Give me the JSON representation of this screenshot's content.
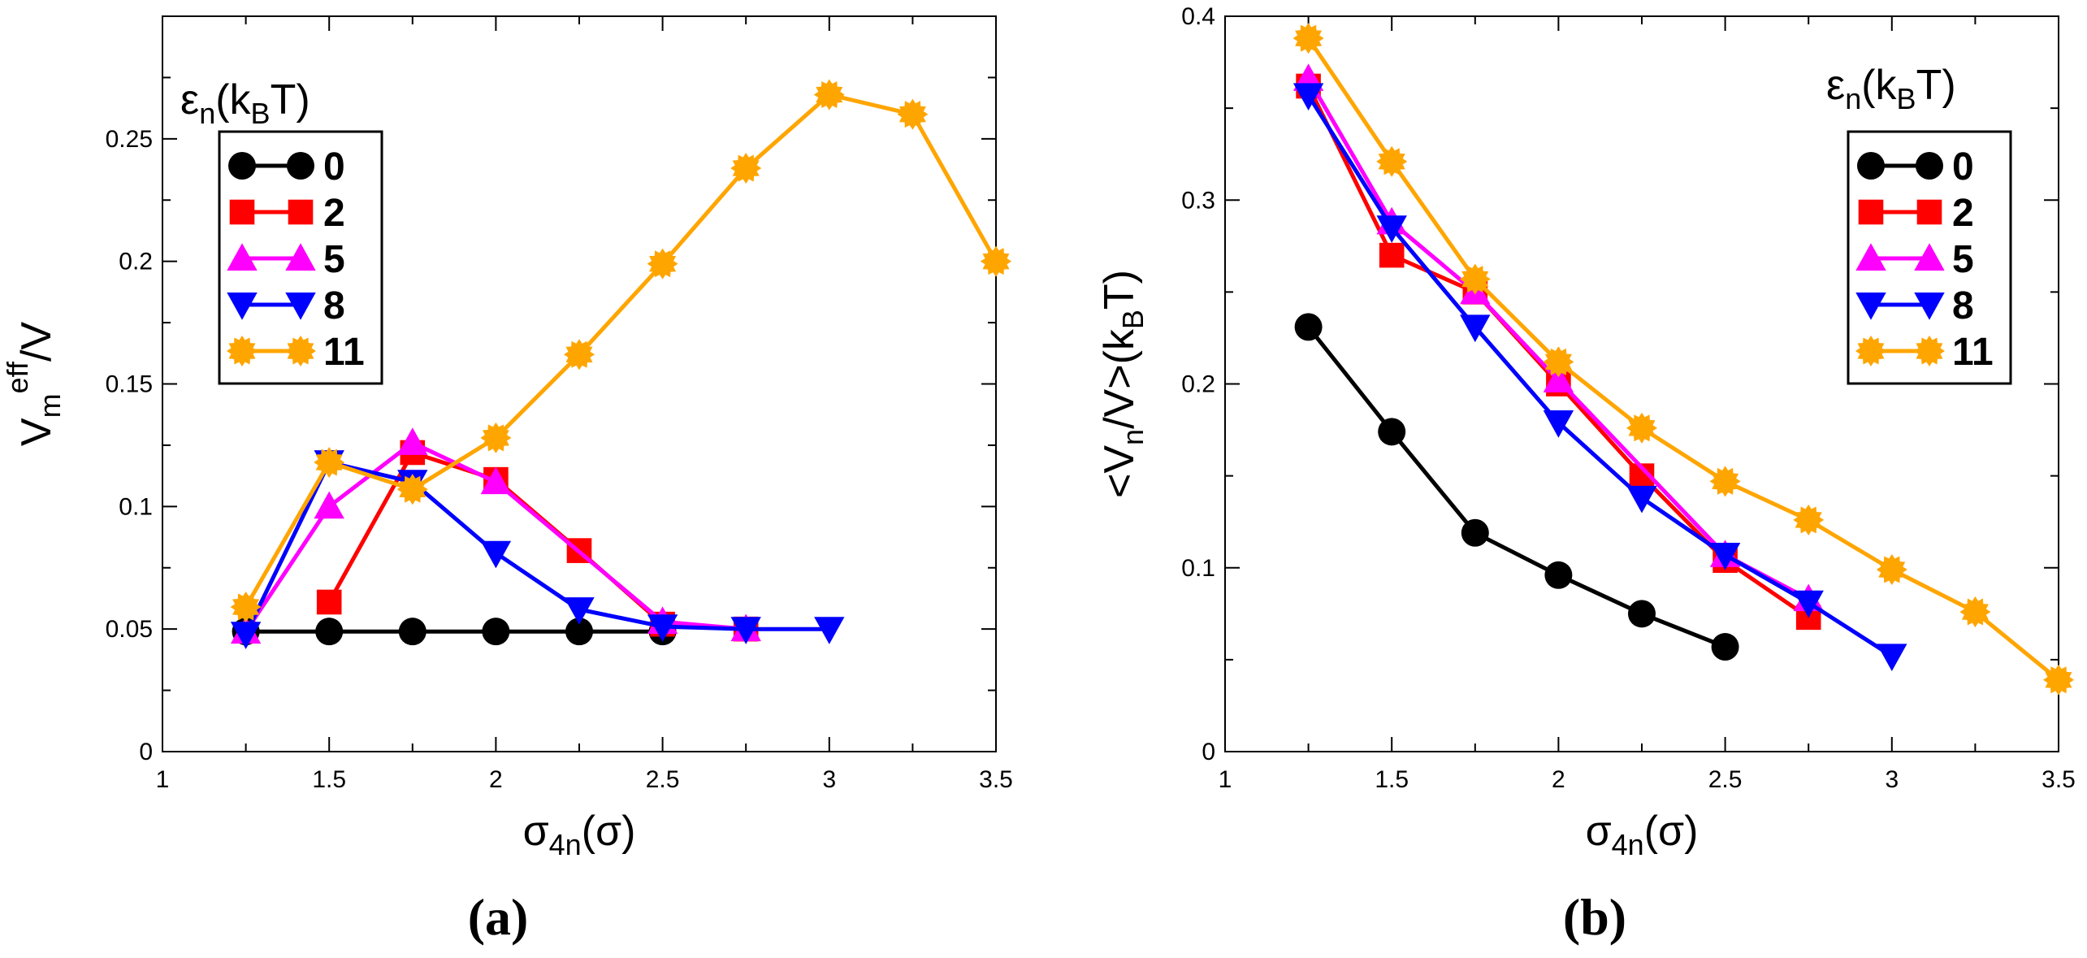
{
  "chart_data": [
    {
      "type": "line",
      "panel_label": "(a)",
      "xlabel": {
        "main": "σ",
        "sub": "4n",
        "tail": "(σ)"
      },
      "ylabel": {
        "main": "V",
        "sub": "m",
        "sup": "eff",
        "tail": "/V"
      },
      "xlim": [
        1,
        3.5
      ],
      "ylim": [
        0,
        0.3
      ],
      "xticks": [
        1,
        1.5,
        2,
        2.5,
        3,
        3.5
      ],
      "xtick_labels": [
        "1",
        "1.5",
        "2",
        "2.5",
        "3",
        "3.5"
      ],
      "yticks": [
        0,
        0.05,
        0.1,
        0.15,
        0.2,
        0.25
      ],
      "ytick_labels": [
        "0",
        "0.05",
        "0.1",
        "0.15",
        "0.2",
        "0.25"
      ],
      "legend": {
        "placement": "top-left",
        "title": {
          "main": "ε",
          "sub": "n",
          "tail": "(k",
          "sub2": "B",
          "tail2": "T)"
        }
      },
      "series": [
        {
          "name": "0",
          "color": "#000000",
          "marker": "circle",
          "x": [
            1.25,
            1.5,
            1.75,
            2.0,
            2.25,
            2.5
          ],
          "y": [
            0.049,
            0.049,
            0.049,
            0.049,
            0.049,
            0.049
          ]
        },
        {
          "name": "2",
          "color": "#ff0000",
          "marker": "square",
          "x": [
            1.5,
            1.75,
            2.0,
            2.25,
            2.5,
            2.75
          ],
          "y": [
            0.061,
            0.122,
            0.111,
            0.082,
            0.052,
            0.05
          ]
        },
        {
          "name": "5",
          "color": "#ff00ff",
          "marker": "triangle-up",
          "x": [
            1.25,
            1.5,
            1.75,
            2.0,
            2.5,
            2.75
          ],
          "y": [
            0.049,
            0.1,
            0.126,
            0.11,
            0.053,
            0.05
          ]
        },
        {
          "name": "8",
          "color": "#0000ff",
          "marker": "triangle-down",
          "x": [
            1.25,
            1.5,
            1.75,
            2.0,
            2.25,
            2.5,
            2.75,
            3.0
          ],
          "y": [
            0.048,
            0.118,
            0.11,
            0.081,
            0.058,
            0.051,
            0.05,
            0.05
          ]
        },
        {
          "name": "11",
          "color": "#ffa500",
          "marker": "star",
          "x": [
            1.25,
            1.5,
            1.75,
            2.0,
            2.25,
            2.5,
            2.75,
            3.0,
            3.25,
            3.5
          ],
          "y": [
            0.059,
            0.118,
            0.107,
            0.128,
            0.162,
            0.199,
            0.238,
            0.268,
            0.26,
            0.2
          ]
        }
      ]
    },
    {
      "type": "line",
      "panel_label": "(b)",
      "xlabel": {
        "main": "σ",
        "sub": "4n",
        "tail": "(σ)"
      },
      "ylabel": {
        "main": "<V",
        "sub": "n",
        "tail": "/V>(k",
        "sub2": "B",
        "tail2": "T)"
      },
      "xlim": [
        1,
        3.5
      ],
      "ylim": [
        0,
        0.4
      ],
      "xticks": [
        1,
        1.5,
        2,
        2.5,
        3,
        3.5
      ],
      "xtick_labels": [
        "1",
        "1.5",
        "2",
        "2.5",
        "3",
        "3.5"
      ],
      "yticks": [
        0,
        0.1,
        0.2,
        0.3,
        0.4
      ],
      "ytick_labels": [
        "0",
        "0.1",
        "0.2",
        "0.3",
        "0.4"
      ],
      "legend": {
        "placement": "top-right",
        "title": {
          "main": "ε",
          "sub": "n",
          "tail": "(k",
          "sub2": "B",
          "tail2": "T)"
        }
      },
      "series": [
        {
          "name": "0",
          "color": "#000000",
          "marker": "circle",
          "x": [
            1.25,
            1.5,
            1.75,
            2.0,
            2.25,
            2.5
          ],
          "y": [
            0.231,
            0.174,
            0.119,
            0.096,
            0.075,
            0.057
          ]
        },
        {
          "name": "2",
          "color": "#ff0000",
          "marker": "square",
          "x": [
            1.25,
            1.5,
            1.75,
            2.0,
            2.25,
            2.5,
            2.75
          ],
          "y": [
            0.362,
            0.27,
            0.25,
            0.2,
            0.15,
            0.104,
            0.073
          ]
        },
        {
          "name": "5",
          "color": "#ff00ff",
          "marker": "triangle-up",
          "x": [
            1.25,
            1.5,
            1.75,
            2.0,
            2.5,
            2.75
          ],
          "y": [
            0.366,
            0.288,
            0.25,
            0.202,
            0.107,
            0.083
          ]
        },
        {
          "name": "8",
          "color": "#0000ff",
          "marker": "triangle-down",
          "x": [
            1.25,
            1.5,
            1.75,
            2.0,
            2.25,
            2.5,
            2.75,
            3.0
          ],
          "y": [
            0.357,
            0.285,
            0.231,
            0.179,
            0.138,
            0.107,
            0.081,
            0.052
          ]
        },
        {
          "name": "11",
          "color": "#ffa500",
          "marker": "star",
          "x": [
            1.25,
            1.5,
            1.75,
            2.0,
            2.25,
            2.5,
            2.75,
            3.0,
            3.25,
            3.5
          ],
          "y": [
            0.388,
            0.321,
            0.257,
            0.212,
            0.176,
            0.147,
            0.126,
            0.099,
            0.076,
            0.039
          ]
        }
      ]
    }
  ]
}
